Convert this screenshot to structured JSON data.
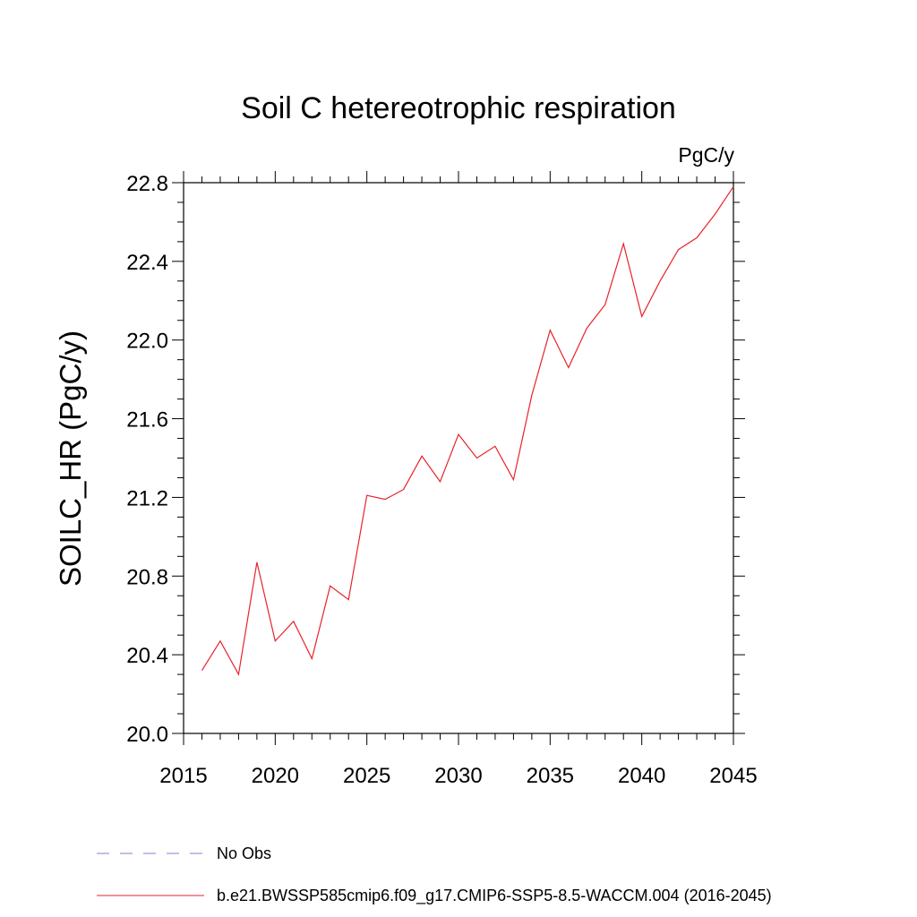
{
  "chart_data": {
    "type": "line",
    "title": "Soil C hetereotrophic respiration",
    "units": "PgC/y",
    "xlabel": "",
    "ylabel": "SOILC_HR  (PgC/y)",
    "xlim": [
      2015,
      2045
    ],
    "ylim": [
      20.0,
      22.8
    ],
    "xticks": [
      2015,
      2020,
      2025,
      2030,
      2035,
      2040,
      2045
    ],
    "xtick_labels": [
      "2015",
      "2020",
      "2025",
      "2030",
      "2035",
      "2040",
      "2045"
    ],
    "yticks": [
      20.0,
      20.4,
      20.8,
      21.2,
      21.6,
      22.0,
      22.4,
      22.8
    ],
    "ytick_labels": [
      "20.0",
      "20.4",
      "20.8",
      "21.2",
      "21.6",
      "22.0",
      "22.4",
      "22.8"
    ],
    "series": [
      {
        "name": "b.e21.BWSSP585cmip6.f09_g17.CMIP6-SSP5-8.5-WACCM.004 (2016-2045)",
        "color": "#e8232a",
        "x": [
          2016,
          2017,
          2018,
          2019,
          2020,
          2021,
          2022,
          2023,
          2024,
          2025,
          2026,
          2027,
          2028,
          2029,
          2030,
          2031,
          2032,
          2033,
          2034,
          2035,
          2036,
          2037,
          2038,
          2039,
          2040,
          2041,
          2042,
          2043,
          2044,
          2045
        ],
        "values": [
          20.32,
          20.47,
          20.3,
          20.87,
          20.47,
          20.57,
          20.38,
          20.75,
          20.68,
          21.21,
          21.19,
          21.24,
          21.41,
          21.28,
          21.52,
          21.4,
          21.46,
          21.29,
          21.72,
          22.05,
          21.86,
          22.06,
          22.18,
          22.49,
          22.12,
          22.3,
          22.46,
          22.52,
          22.64,
          22.78
        ]
      }
    ],
    "legend": [
      {
        "label": "No Obs",
        "color": "#8b7ec8",
        "style": "dashed"
      },
      {
        "label": "b.e21.BWSSP585cmip6.f09_g17.CMIP6-SSP5-8.5-WACCM.004 (2016-2045)",
        "color": "#e8232a",
        "style": "solid"
      }
    ]
  }
}
